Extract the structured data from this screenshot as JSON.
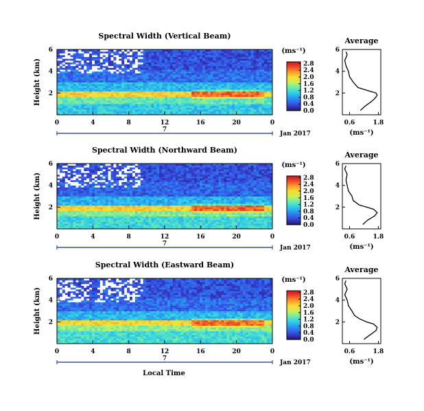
{
  "chart_data": [
    {
      "type": "heatmap",
      "title": "Spectral Width (Vertical Beam)",
      "ylabel": "Height (km)",
      "x_ticks": [
        "0",
        "4",
        "8",
        "12",
        "16",
        "20",
        "0"
      ],
      "y_ticks": [
        "2",
        "4",
        "6"
      ],
      "xlim": [
        0,
        24
      ],
      "ylim": [
        0,
        6
      ],
      "date_label": "7",
      "month_label": "Jan 2017",
      "colorbar": {
        "unit": "(ms⁻¹)",
        "ticks": [
          "0.0",
          "0.4",
          "0.8",
          "1.2",
          "1.6",
          "2.0",
          "2.4",
          "2.8"
        ],
        "range": [
          0,
          2.9
        ]
      },
      "layers": [
        {
          "h0": 0.0,
          "h1": 1.0,
          "v": 1.05
        },
        {
          "h0": 1.0,
          "h1": 1.6,
          "v": 1.35
        },
        {
          "h0": 1.6,
          "h1": 2.2,
          "v": 2.05
        },
        {
          "h0": 2.2,
          "h1": 3.0,
          "v": 0.95
        },
        {
          "h0": 3.0,
          "h1": 4.2,
          "v": 0.55
        },
        {
          "h0": 4.2,
          "h1": 6.0,
          "v": 0.4
        }
      ],
      "profile": {
        "title": "Average",
        "xlabel": "(ms⁻¹)",
        "x_ticks": [
          "0.6",
          "1.8"
        ],
        "xlim": [
          0.3,
          1.9
        ],
        "y_ticks": [
          "2",
          "4",
          "6"
        ],
        "ylim": [
          0,
          6
        ],
        "heights": [
          0.4,
          0.8,
          1.2,
          1.5,
          1.8,
          2.0,
          2.2,
          2.5,
          3.0,
          3.5,
          4.0,
          4.5,
          5.0,
          5.5,
          5.8
        ],
        "values": [
          1.05,
          1.25,
          1.5,
          1.65,
          1.75,
          1.7,
          1.4,
          0.95,
          0.75,
          0.6,
          0.55,
          0.45,
          0.4,
          0.5,
          0.45
        ]
      }
    },
    {
      "type": "heatmap",
      "title": "Spectral Width (Northward Beam)",
      "ylabel": "Height (km)",
      "x_ticks": [
        "0",
        "4",
        "8",
        "12",
        "16",
        "20",
        "0"
      ],
      "y_ticks": [
        "2",
        "4",
        "6"
      ],
      "xlim": [
        0,
        24
      ],
      "ylim": [
        0,
        6
      ],
      "date_label": "7",
      "month_label": "Jan 2017",
      "colorbar": {
        "unit": "(ms⁻¹)",
        "ticks": [
          "0.0",
          "0.4",
          "0.8",
          "1.2",
          "1.6",
          "2.0",
          "2.4",
          "2.8"
        ],
        "range": [
          0,
          2.9
        ]
      },
      "layers": [
        {
          "h0": 0.0,
          "h1": 1.1,
          "v": 1.15
        },
        {
          "h0": 1.1,
          "h1": 1.7,
          "v": 1.45
        },
        {
          "h0": 1.7,
          "h1": 2.1,
          "v": 2.05
        },
        {
          "h0": 2.1,
          "h1": 3.0,
          "v": 0.9
        },
        {
          "h0": 3.0,
          "h1": 4.3,
          "v": 0.5
        },
        {
          "h0": 4.3,
          "h1": 6.0,
          "v": 0.4
        }
      ],
      "profile": {
        "title": "Average",
        "xlabel": "(ms⁻¹)",
        "x_ticks": [
          "0.6",
          "1.8"
        ],
        "xlim": [
          0.3,
          1.9
        ],
        "y_ticks": [
          "2",
          "4",
          "6"
        ],
        "ylim": [
          0,
          6
        ],
        "heights": [
          0.4,
          0.8,
          1.2,
          1.5,
          1.8,
          2.0,
          2.2,
          2.6,
          3.0,
          3.5,
          4.0,
          4.5,
          5.0,
          5.5,
          5.8
        ],
        "values": [
          1.15,
          1.35,
          1.65,
          1.75,
          1.6,
          1.3,
          1.0,
          0.75,
          0.7,
          0.55,
          0.5,
          0.45,
          0.5,
          0.4,
          0.45
        ]
      }
    },
    {
      "type": "heatmap",
      "title": "Spectral Width (Eastward Beam)",
      "ylabel": "Height (km)",
      "xlabel": "Local Time",
      "x_ticks": [
        "0",
        "4",
        "8",
        "12",
        "16",
        "20",
        "0"
      ],
      "y_ticks": [
        "2",
        "4",
        "6"
      ],
      "xlim": [
        0,
        24
      ],
      "ylim": [
        0,
        6
      ],
      "date_label": "7",
      "month_label": "Jan 2017",
      "colorbar": {
        "unit": "(ms⁻¹)",
        "ticks": [
          "0.0",
          "0.4",
          "0.8",
          "1.2",
          "1.6",
          "2.0",
          "2.4",
          "2.8"
        ],
        "range": [
          0,
          2.9
        ]
      },
      "layers": [
        {
          "h0": 0.0,
          "h1": 1.1,
          "v": 1.2
        },
        {
          "h0": 1.1,
          "h1": 1.6,
          "v": 1.5
        },
        {
          "h0": 1.6,
          "h1": 2.2,
          "v": 2.0
        },
        {
          "h0": 2.2,
          "h1": 3.0,
          "v": 0.95
        },
        {
          "h0": 3.0,
          "h1": 4.2,
          "v": 0.55
        },
        {
          "h0": 4.2,
          "h1": 6.0,
          "v": 0.4
        }
      ],
      "profile": {
        "title": "Average",
        "xlabel": "(ms⁻¹)",
        "x_ticks": [
          "0.6",
          "1.8"
        ],
        "xlim": [
          0.3,
          1.9
        ],
        "y_ticks": [
          "2",
          "4",
          "6"
        ],
        "ylim": [
          0,
          6
        ],
        "heights": [
          0.4,
          0.8,
          1.2,
          1.5,
          1.8,
          2.0,
          2.3,
          2.6,
          3.0,
          3.5,
          4.0,
          4.5,
          5.0,
          5.5,
          5.8
        ],
        "values": [
          1.2,
          1.45,
          1.7,
          1.75,
          1.6,
          1.3,
          1.0,
          0.8,
          0.7,
          0.55,
          0.5,
          0.4,
          0.5,
          0.4,
          0.45
        ]
      }
    }
  ]
}
